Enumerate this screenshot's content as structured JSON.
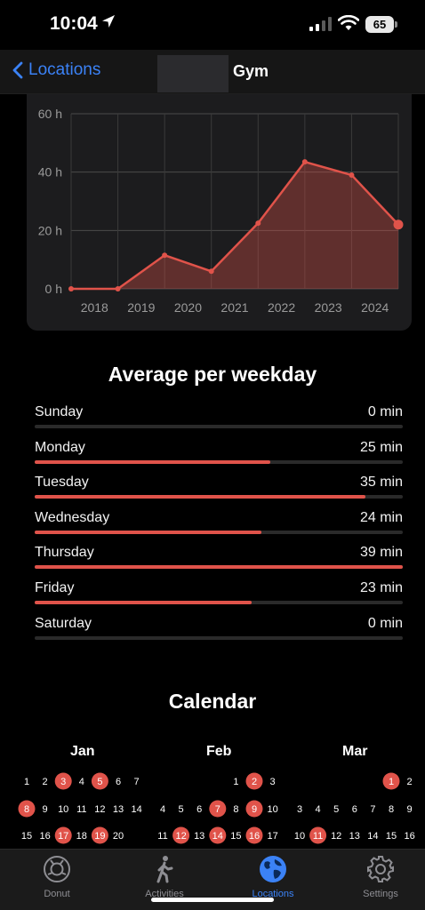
{
  "status_bar": {
    "time": "10:04",
    "battery": "65"
  },
  "nav": {
    "back_label": "Locations",
    "title": "Gym"
  },
  "chart_data": {
    "type": "area",
    "x": [
      2017.5,
      2018.5,
      2019.5,
      2020.5,
      2021.5,
      2022.5,
      2023.5,
      2024.5
    ],
    "values": [
      0,
      0,
      11.5,
      6,
      22.5,
      43.5,
      39,
      22
    ],
    "tick_labels": [
      "2018",
      "2019",
      "2020",
      "2021",
      "2022",
      "2023",
      "2024"
    ],
    "y_ticks": [
      "60 h",
      "40 h",
      "20 h",
      "0 h"
    ],
    "ylim": [
      0,
      60
    ],
    "grid": true,
    "color": "#e0534a"
  },
  "weekday": {
    "title": "Average per weekday",
    "max_minutes": 39,
    "days": [
      {
        "name": "Sunday",
        "value": "0 min",
        "minutes": 0
      },
      {
        "name": "Monday",
        "value": "25 min",
        "minutes": 25
      },
      {
        "name": "Tuesday",
        "value": "35 min",
        "minutes": 35
      },
      {
        "name": "Wednesday",
        "value": "24 min",
        "minutes": 24
      },
      {
        "name": "Thursday",
        "value": "39 min",
        "minutes": 39
      },
      {
        "name": "Friday",
        "value": "23 min",
        "minutes": 23
      },
      {
        "name": "Saturday",
        "value": "0 min",
        "minutes": 0
      }
    ]
  },
  "calendar": {
    "title": "Calendar",
    "highlight_color": "#e0534a",
    "months": [
      {
        "name": "Jan",
        "first_weekday": 0,
        "days": 20,
        "highlighted": [
          3,
          5,
          8,
          17,
          19
        ]
      },
      {
        "name": "Feb",
        "first_weekday": 4,
        "days": 17,
        "highlighted": [
          2,
          7,
          9,
          12,
          14,
          16
        ]
      },
      {
        "name": "Mar",
        "first_weekday": 5,
        "days": 16,
        "highlighted": [
          1,
          11
        ]
      }
    ]
  },
  "tabs": [
    {
      "label": "Donut",
      "icon": "donut-icon",
      "active": false
    },
    {
      "label": "Activities",
      "icon": "walking-icon",
      "active": false
    },
    {
      "label": "Locations",
      "icon": "globe-icon",
      "active": true
    },
    {
      "label": "Settings",
      "icon": "gear-icon",
      "active": false
    }
  ]
}
